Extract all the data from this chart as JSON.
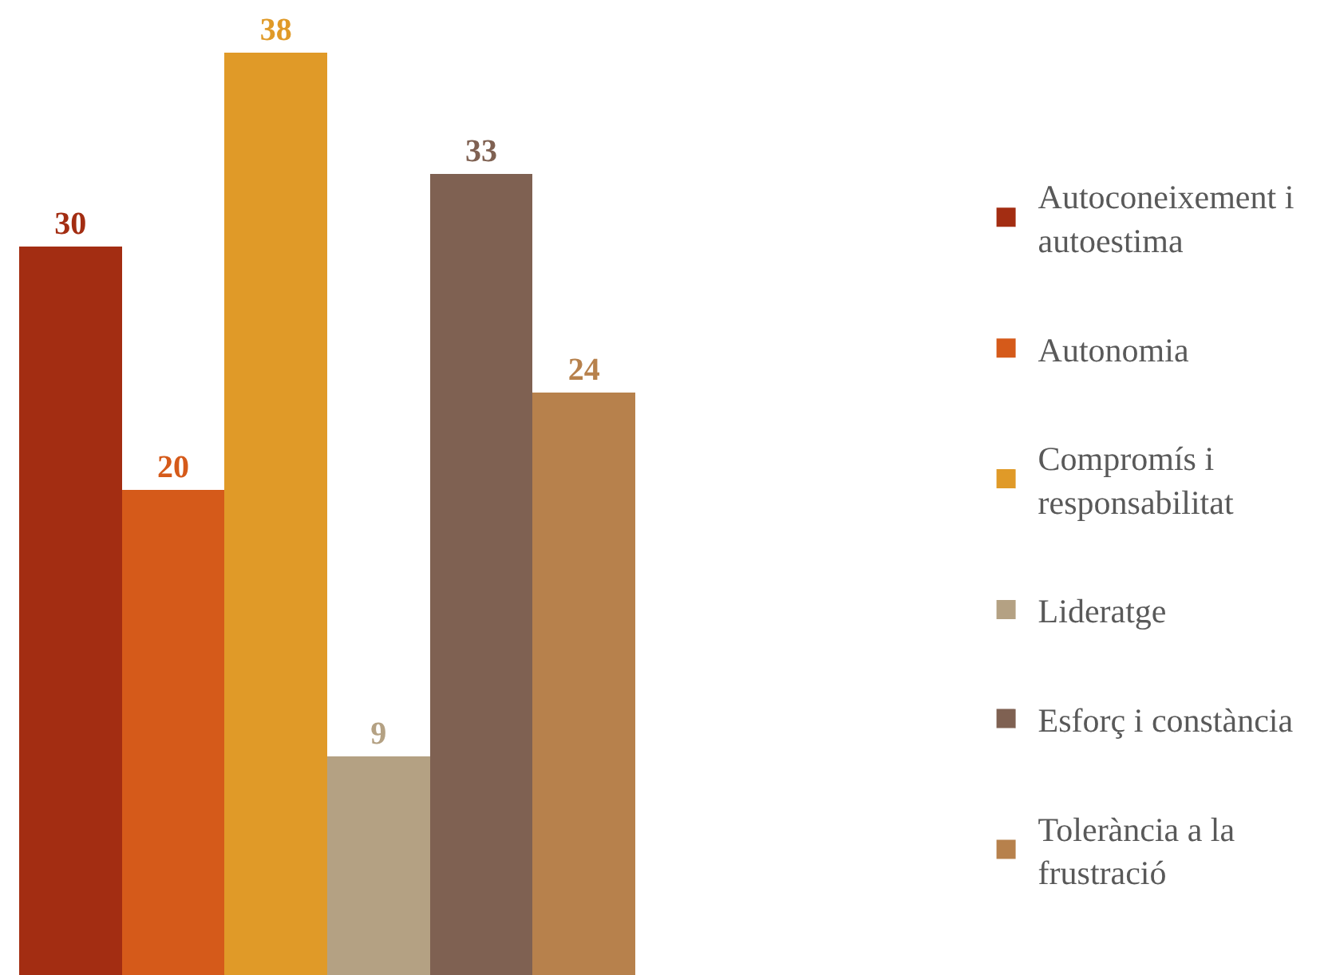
{
  "chart_data": {
    "type": "bar",
    "categories": [
      null
    ],
    "data_labels": true,
    "legend": "right",
    "series": [
      {
        "name": "Autoconeixement i autoestima",
        "color": "#a32d12",
        "values": [
          30
        ]
      },
      {
        "name": "Autonomia",
        "color": "#d55a1a",
        "values": [
          20
        ]
      },
      {
        "name": "Compromís i responsabilitat",
        "color": "#e09a28",
        "values": [
          38
        ]
      },
      {
        "name": "Lideratge",
        "color": "#b4a183",
        "values": [
          9
        ]
      },
      {
        "name": "Esforç i constància",
        "color": "#7f6152",
        "values": [
          33
        ]
      },
      {
        "name": "Tolerància a la frustració",
        "color": "#b7814c",
        "values": [
          24
        ]
      }
    ]
  }
}
